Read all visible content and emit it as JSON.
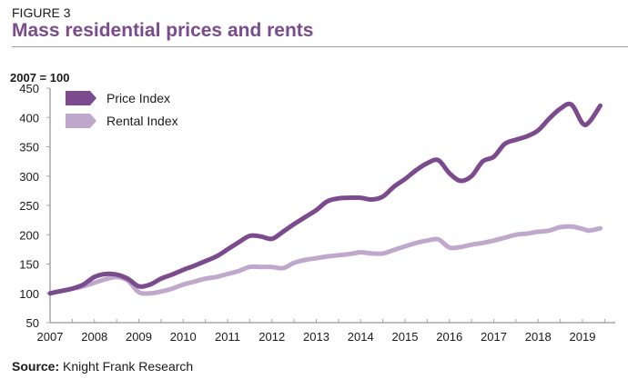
{
  "figure_label": "FIGURE 3",
  "title": "Mass residential prices and rents",
  "source_label": "Source:",
  "source_text": "Knight Frank Research",
  "colors": {
    "price": "#7b4b8e",
    "rental": "#bfa8cc",
    "axis": "#a6a6a6",
    "title": "#7b4b8e"
  },
  "chart_data": {
    "type": "line",
    "title": "Mass residential prices and rents",
    "ylabel": "2007 = 100",
    "xlabel": "",
    "ylim": [
      50,
      450
    ],
    "yticks": [
      50,
      100,
      150,
      200,
      250,
      300,
      350,
      400,
      450
    ],
    "xlim": [
      2007,
      2019.55
    ],
    "xticks": [
      2007,
      2008,
      2009,
      2010,
      2011,
      2012,
      2013,
      2014,
      2015,
      2016,
      2017,
      2018,
      2019
    ],
    "xtick_labels": [
      "2007",
      "2008",
      "2009",
      "2010",
      "2011",
      "2012",
      "2013",
      "2014",
      "2015",
      "2016",
      "2017",
      "2018",
      "2019"
    ],
    "grid": false,
    "legend_position": "top-left",
    "series": [
      {
        "name": "Price Index",
        "color": "#7b4b8e",
        "x": [
          2007.0,
          2007.25,
          2007.5,
          2007.75,
          2008.0,
          2008.25,
          2008.5,
          2008.75,
          2009.0,
          2009.25,
          2009.5,
          2009.75,
          2010.0,
          2010.25,
          2010.5,
          2010.75,
          2011.0,
          2011.25,
          2011.5,
          2011.75,
          2012.0,
          2012.25,
          2012.5,
          2012.75,
          2013.0,
          2013.25,
          2013.5,
          2013.75,
          2014.0,
          2014.25,
          2014.5,
          2014.75,
          2015.0,
          2015.25,
          2015.5,
          2015.75,
          2016.0,
          2016.25,
          2016.5,
          2016.75,
          2017.0,
          2017.25,
          2017.5,
          2017.75,
          2018.0,
          2018.25,
          2018.5,
          2018.75,
          2019.0,
          2019.15,
          2019.4
        ],
        "values": [
          100,
          104,
          108,
          115,
          128,
          133,
          132,
          125,
          112,
          115,
          125,
          132,
          140,
          147,
          155,
          163,
          175,
          187,
          198,
          197,
          193,
          205,
          218,
          230,
          242,
          257,
          262,
          263,
          263,
          260,
          265,
          282,
          295,
          310,
          322,
          327,
          305,
          292,
          300,
          325,
          333,
          355,
          362,
          368,
          378,
          398,
          415,
          422,
          390,
          392,
          420
        ]
      },
      {
        "name": "Rental Index",
        "color": "#bfa8cc",
        "x": [
          2007.0,
          2007.25,
          2007.5,
          2007.75,
          2008.0,
          2008.25,
          2008.5,
          2008.75,
          2009.0,
          2009.25,
          2009.5,
          2009.75,
          2010.0,
          2010.25,
          2010.5,
          2010.75,
          2011.0,
          2011.25,
          2011.5,
          2011.75,
          2012.0,
          2012.25,
          2012.5,
          2012.75,
          2013.0,
          2013.25,
          2013.5,
          2013.75,
          2014.0,
          2014.25,
          2014.5,
          2014.75,
          2015.0,
          2015.25,
          2015.5,
          2015.75,
          2016.0,
          2016.25,
          2016.5,
          2016.75,
          2017.0,
          2017.25,
          2017.5,
          2017.75,
          2018.0,
          2018.25,
          2018.5,
          2018.75,
          2019.0,
          2019.15,
          2019.4
        ],
        "values": [
          100,
          104,
          108,
          112,
          118,
          124,
          128,
          122,
          102,
          100,
          103,
          108,
          115,
          120,
          125,
          128,
          133,
          138,
          145,
          145,
          145,
          143,
          152,
          157,
          160,
          163,
          165,
          167,
          170,
          168,
          168,
          174,
          180,
          186,
          190,
          192,
          178,
          179,
          183,
          186,
          190,
          195,
          200,
          202,
          205,
          207,
          213,
          214,
          210,
          207,
          211
        ]
      }
    ]
  }
}
